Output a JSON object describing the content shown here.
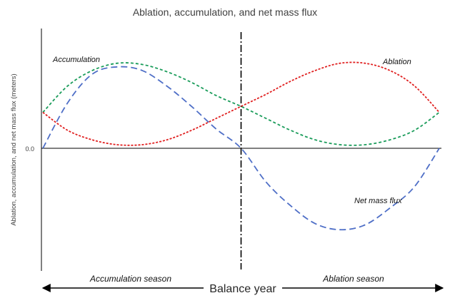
{
  "chart_data": {
    "type": "line",
    "title": "Ablation, accumulation, and net mass flux",
    "xlabel": "Balance year",
    "ylabel": "Ablation, accumulation, and net mass flux (meters)",
    "yticks": [
      "0.0"
    ],
    "x": [
      0,
      0.0625,
      0.125,
      0.1875,
      0.25,
      0.3125,
      0.375,
      0.4375,
      0.5,
      0.5625,
      0.625,
      0.6875,
      0.75,
      0.8125,
      0.875,
      0.9375,
      1
    ],
    "ylim": [
      -1.0,
      1.0
    ],
    "series": [
      {
        "name": "Accumulation",
        "color": "#1a9c5a",
        "values": [
          0.3,
          0.52,
          0.65,
          0.71,
          0.7,
          0.64,
          0.55,
          0.44,
          0.35,
          0.25,
          0.15,
          0.07,
          0.03,
          0.03,
          0.07,
          0.15,
          0.3
        ]
      },
      {
        "name": "Ablation",
        "color": "#e02020",
        "values": [
          0.3,
          0.15,
          0.07,
          0.03,
          0.03,
          0.07,
          0.15,
          0.25,
          0.35,
          0.45,
          0.56,
          0.65,
          0.71,
          0.71,
          0.65,
          0.52,
          0.3
        ]
      },
      {
        "name": "Net mass flux",
        "color": "#4f6fc7",
        "values": [
          0.0,
          0.38,
          0.62,
          0.68,
          0.65,
          0.52,
          0.35,
          0.16,
          0.0,
          -0.28,
          -0.48,
          -0.63,
          -0.68,
          -0.64,
          -0.5,
          -0.32,
          0.0
        ]
      }
    ],
    "annotations": {
      "accumulation_label": "Accumulation",
      "ablation_label": "Ablation",
      "net_label": "Net mass flux",
      "accumulation_season": "Accumulation season",
      "ablation_season": "Ablation season"
    },
    "divider_x": 0.5,
    "legend": "none",
    "grid": false
  }
}
